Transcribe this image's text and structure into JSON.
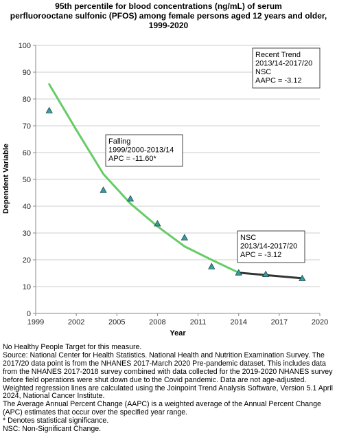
{
  "chart_data": {
    "type": "line",
    "title_lines": [
      "95th percentile for blood concentrations (ng/mL) of serum",
      "perfluorooctane sulfonic (PFOS) among female persons aged 12 years and older,",
      "1999-2020"
    ],
    "xlabel": "Year",
    "ylabel": "Dependent Variable",
    "xlim": [
      1999,
      2020
    ],
    "ylim": [
      0,
      100
    ],
    "x_ticks": [
      1999,
      2002,
      2005,
      2008,
      2011,
      2014,
      2017,
      2020
    ],
    "y_ticks": [
      0,
      10,
      20,
      30,
      40,
      50,
      60,
      70,
      80,
      90,
      100
    ],
    "grid": "horizontal",
    "colors": {
      "falling_segment": "#66cc66",
      "nsc_segment": "#333333",
      "marker_fill": "#3a9aa0",
      "marker_stroke": "#1a4a4a",
      "axis": "#888888",
      "grid": "#cccccc"
    },
    "observed": {
      "x": [
        2000,
        2004,
        2006,
        2008,
        2010,
        2012,
        2014,
        2016,
        2018.7
      ],
      "y": [
        75.7,
        46.0,
        42.8,
        33.5,
        28.3,
        17.5,
        15.2,
        14.6,
        13.1
      ]
    },
    "fitted_segments": [
      {
        "x": [
          2000,
          2002,
          2004,
          2006,
          2008,
          2010,
          2012,
          2014
        ],
        "y": [
          85.5,
          68.5,
          52.0,
          41.0,
          32.5,
          25.0,
          20.0,
          15.2
        ],
        "color": "#66cc66"
      },
      {
        "x": [
          2014,
          2016,
          2018.7
        ],
        "y": [
          15.2,
          14.3,
          13.1
        ],
        "color": "#333333"
      }
    ],
    "annotations": [
      {
        "lines": [
          "Recent Trend",
          "2013/14-2017/20",
          "NSC",
          "AAPC = -3.12"
        ],
        "anchor": "top-right"
      },
      {
        "lines": [
          "Falling",
          "1999/2000-2013/14",
          "APC = -11.60*"
        ],
        "anchor": "upper-middle"
      },
      {
        "lines": [
          "NSC",
          "2013/14-2017/20",
          "APC = -3.12"
        ],
        "anchor": "lower-right"
      }
    ]
  },
  "footnotes": [
    "No Healthy People Target for this measure.",
    "Source: National Center for Health Statistics. National Health and Nutrition Examination Survey. The 2017/20 data point is from the NHANES 2017-March 2020 Pre-pandemic dataset. This includes data from the NHANES 2017-2018 survey combined with data collected for the 2019-2020 NHANES survey before field operations were shut down due to the Covid pandemic. Data are not age-adjusted.",
    "Weighted regression lines are calculated using the Joinpoint Trend Analysis Software, Version 5.1 April 2024, National Cancer Institute.",
    "The Average Annual Percent Change (AAPC) is a weighted average of the Annual Percent Change (APC) estimates that occur over the specified year range.",
    "* Denotes statistical significance.",
    "NSC: Non-Significant Change."
  ]
}
